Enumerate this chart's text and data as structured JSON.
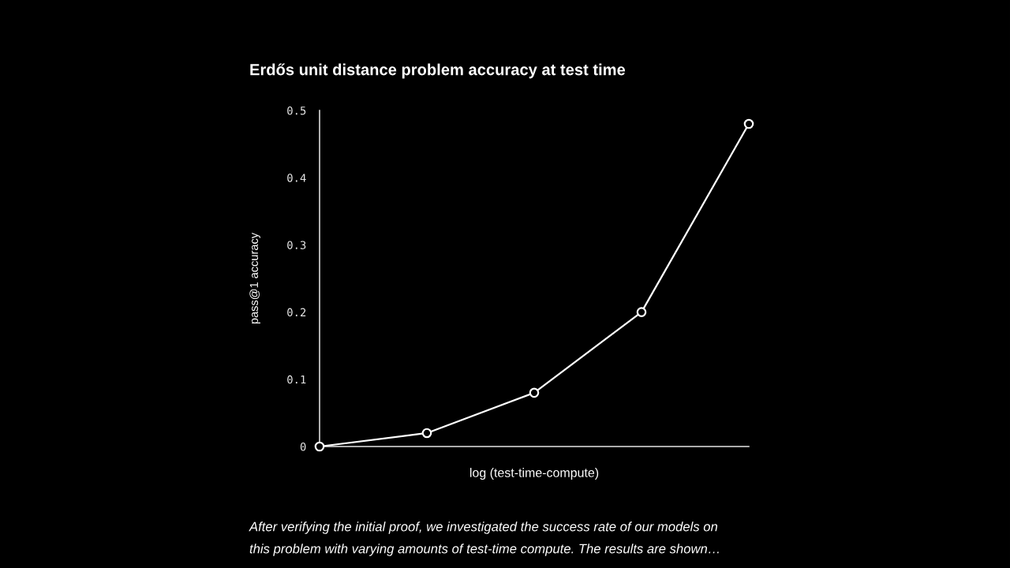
{
  "chart_data": {
    "type": "line",
    "title": "Erdős unit distance problem accuracy at test time",
    "xlabel": "log (test-time-compute)",
    "ylabel": "pass@1 accuracy",
    "categories": [
      null,
      null,
      null,
      null,
      null
    ],
    "series": [
      {
        "color": "#ffffff",
        "values": [
          0,
          0.02,
          0.08,
          0.2,
          0.48
        ]
      }
    ],
    "ylim": [
      0,
      0.5
    ],
    "yticks": [
      0,
      0.1,
      0.2,
      0.3,
      0.4,
      0.5
    ],
    "tick_labels": "y",
    "marker": "circle",
    "line_style": "solid",
    "annotations": [
      "After verifying the initial proof, we investigated the success rate of our models on",
      "this problem with varying amounts of test-time compute. The results are shown…"
    ]
  }
}
